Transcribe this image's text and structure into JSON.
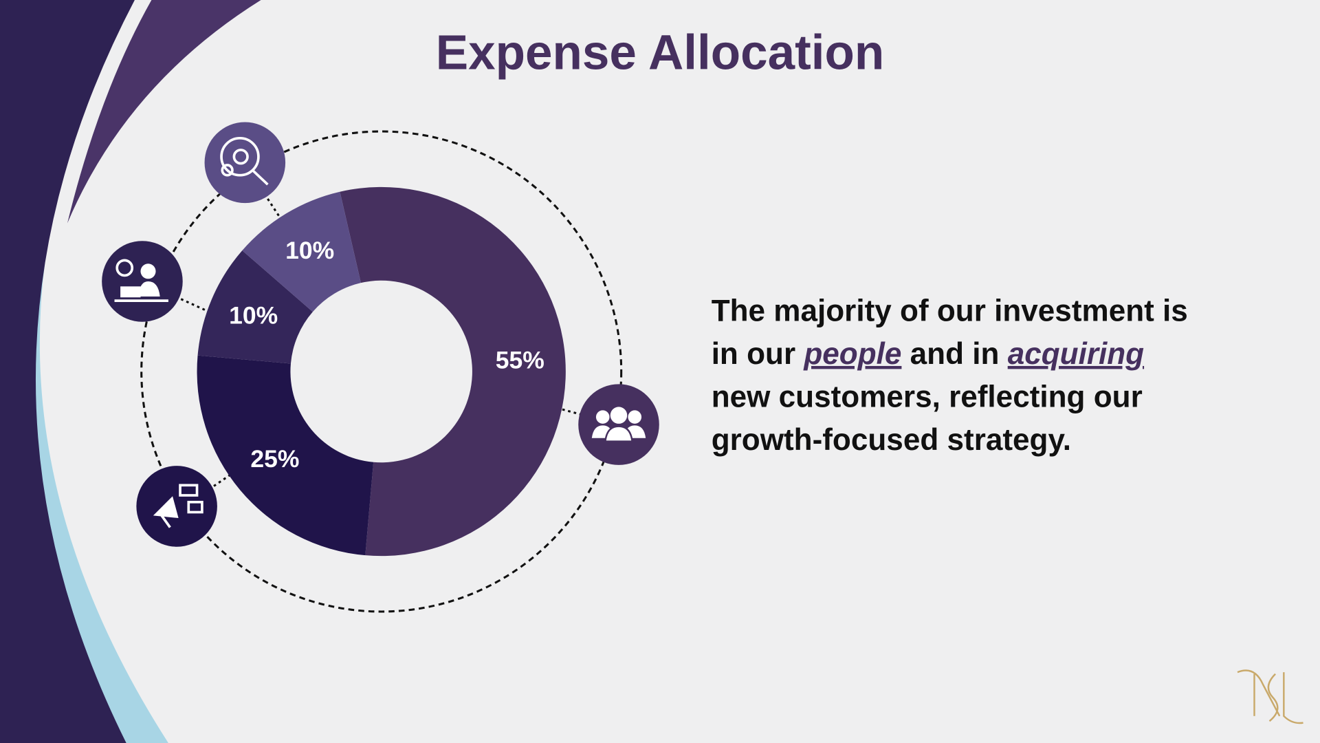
{
  "chart_data": {
    "type": "donut",
    "title": "Expense Allocation",
    "values": [
      55,
      25,
      10,
      10
    ],
    "value_labels": [
      "55%",
      "25%",
      "10%",
      "10%"
    ],
    "colors": [
      "#46305f",
      "#20144a",
      "#34265a",
      "#5a4d86"
    ],
    "annotation": [
      [
        {
          "text": "The majority of our investment is"
        }
      ],
      [
        {
          "text": "in our "
        },
        {
          "text": "people",
          "emphasis": true
        },
        {
          "text": " and in "
        },
        {
          "text": "acquiring",
          "emphasis": true
        }
      ],
      [
        {
          "text": "new customers, reflecting our"
        }
      ],
      [
        {
          "text": "growth-focused strategy."
        }
      ]
    ]
  }
}
